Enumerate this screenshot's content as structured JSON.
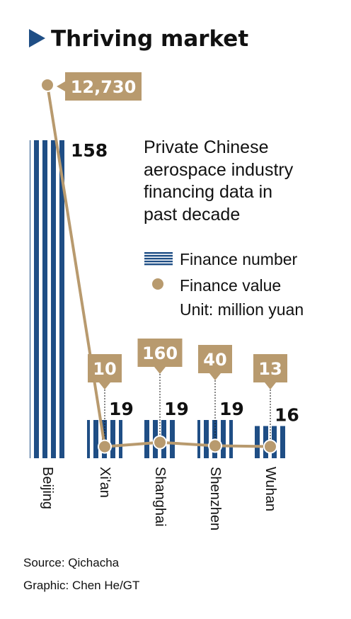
{
  "header": {
    "title": "Thriving market"
  },
  "description": {
    "lines": [
      "Private Chinese",
      "aerospace industry",
      "financing data in",
      "past decade"
    ]
  },
  "legend": {
    "count_label": "Finance number",
    "value_label": "Finance value",
    "unit": "Unit: million yuan"
  },
  "footer": {
    "source": "Source: Qichacha",
    "graphic": "Graphic: Chen He/GT"
  },
  "colors": {
    "bar": "#1f4e85",
    "line": "#b89a6e",
    "accent": "#1f4e85"
  },
  "chart_data": {
    "type": "bar",
    "categories": [
      "Beijing",
      "Xi'an",
      "Shanghai",
      "Shenzhen",
      "Wuhan"
    ],
    "series": [
      {
        "name": "Finance number",
        "type": "bar",
        "values": [
          158,
          19,
          19,
          19,
          16
        ]
      },
      {
        "name": "Finance value",
        "type": "line",
        "unit": "million yuan",
        "values": [
          12730,
          10,
          160,
          40,
          13
        ]
      }
    ],
    "value_labels": [
      "12,730",
      "10",
      "160",
      "40",
      "13"
    ],
    "count_labels": [
      "158",
      "19",
      "19",
      "19",
      "16"
    ],
    "grid": false,
    "legend_position": "right"
  }
}
